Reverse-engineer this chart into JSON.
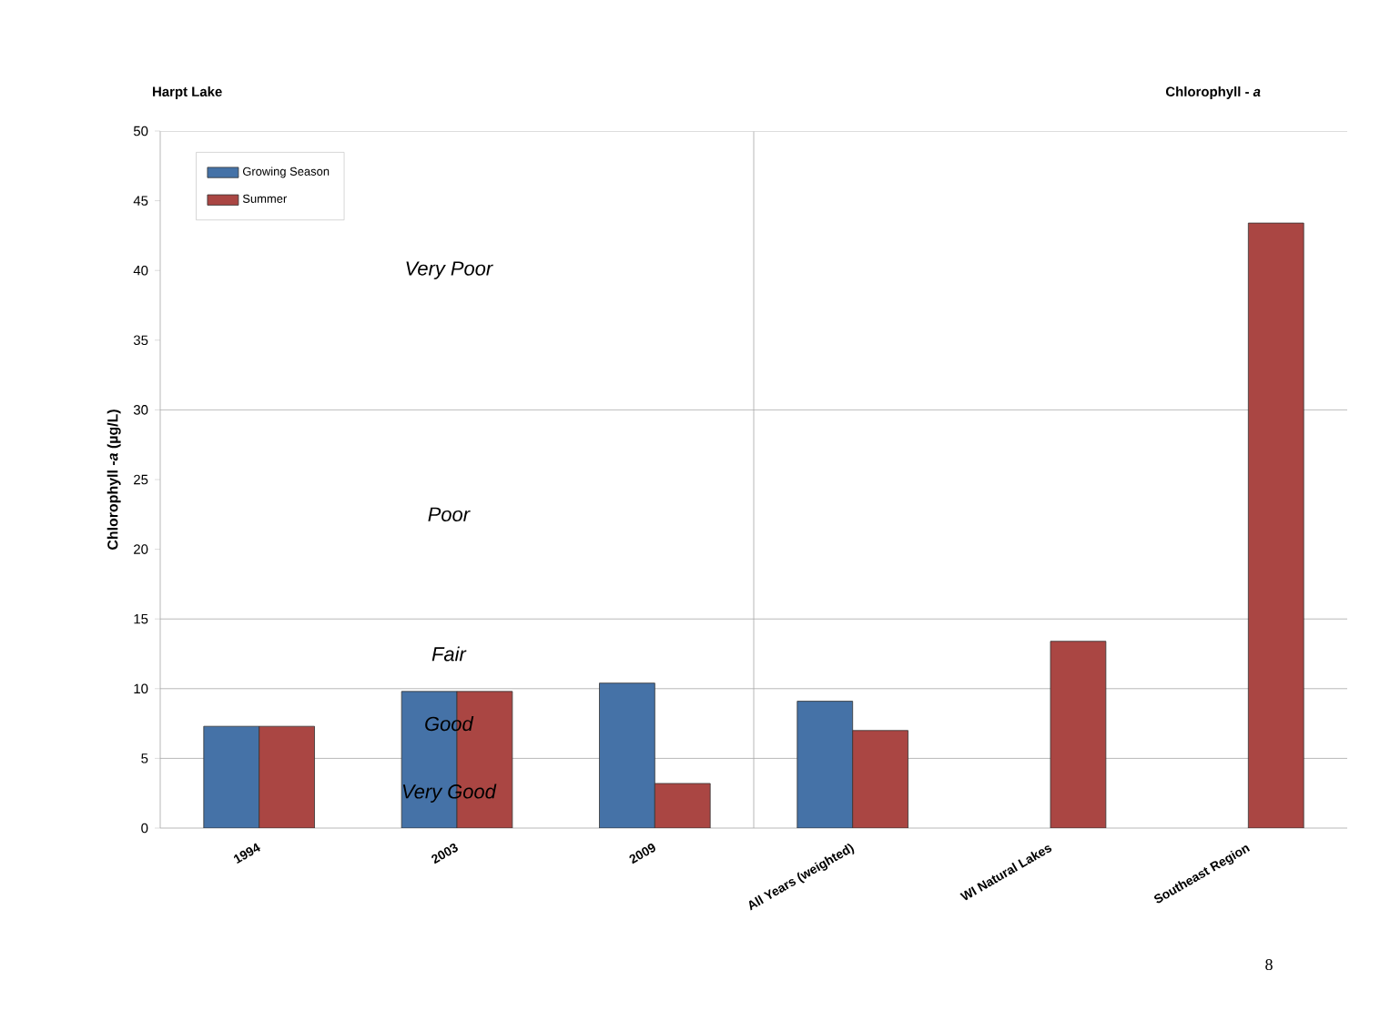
{
  "chart_data": {
    "type": "bar",
    "title": "Harpt Lake",
    "subtitle": "Chlorophyll - *a*",
    "ylabel": "Chlorophyll -*a* (µg/L)",
    "categories": [
      "1994",
      "2003",
      "2009",
      "All Years (weighted)",
      "WI Natural Lakes",
      "Southeast Region"
    ],
    "series": [
      {
        "name": "Growing Season",
        "color": "#4572a7",
        "values": [
          7.3,
          9.8,
          10.4,
          9.1,
          null,
          null
        ]
      },
      {
        "name": "Summer",
        "color": "#aa4643",
        "values": [
          7.3,
          9.8,
          3.2,
          7.0,
          13.4,
          43.4
        ]
      }
    ],
    "ylim": [
      0,
      50
    ],
    "yticks": [
      0,
      5,
      10,
      15,
      20,
      25,
      30,
      35,
      40,
      45,
      50
    ],
    "legend": "top left",
    "grid": false,
    "ref_lines": [
      {
        "axis": "y",
        "value": 5
      },
      {
        "axis": "y",
        "value": 10
      },
      {
        "axis": "y",
        "value": 15
      },
      {
        "axis": "y",
        "value": 30
      }
    ],
    "annotations": [
      "Very Good",
      "Good",
      "Fair",
      "Poor",
      "Very Poor",
      "8"
    ]
  }
}
